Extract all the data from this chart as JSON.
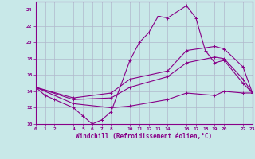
{
  "xlabel": "Windchill (Refroidissement éolien,°C)",
  "background_color": "#c8e8e8",
  "grid_color": "#b0b8cc",
  "line_color": "#880088",
  "xlim": [
    0,
    23
  ],
  "ylim": [
    10,
    25
  ],
  "xticks": [
    0,
    1,
    2,
    4,
    5,
    6,
    7,
    8,
    10,
    11,
    12,
    13,
    14,
    16,
    17,
    18,
    19,
    20,
    22,
    23
  ],
  "yticks": [
    10,
    12,
    14,
    16,
    18,
    20,
    22,
    24
  ],
  "series": [
    {
      "x": [
        0,
        1,
        2,
        4,
        5,
        6,
        7,
        8,
        10,
        11,
        12,
        13,
        14,
        16,
        17,
        18,
        19,
        20,
        22,
        23
      ],
      "y": [
        14.5,
        13.5,
        13.0,
        12.0,
        11.0,
        10.0,
        10.5,
        11.5,
        17.8,
        20.0,
        21.2,
        23.2,
        23.0,
        24.5,
        23.0,
        19.0,
        17.5,
        17.8,
        15.0,
        13.8
      ]
    },
    {
      "x": [
        0,
        4,
        8,
        10,
        14,
        16,
        19,
        20,
        22,
        23
      ],
      "y": [
        14.5,
        13.2,
        13.8,
        15.5,
        16.5,
        19.0,
        19.5,
        19.2,
        17.0,
        13.8
      ]
    },
    {
      "x": [
        0,
        4,
        8,
        10,
        14,
        16,
        19,
        20,
        22,
        23
      ],
      "y": [
        14.5,
        13.0,
        13.2,
        14.5,
        15.8,
        17.5,
        18.2,
        18.0,
        15.5,
        13.8
      ]
    },
    {
      "x": [
        0,
        4,
        8,
        10,
        14,
        16,
        19,
        20,
        22,
        23
      ],
      "y": [
        14.5,
        12.5,
        12.0,
        12.2,
        13.0,
        13.8,
        13.5,
        14.0,
        13.8,
        13.8
      ]
    }
  ]
}
